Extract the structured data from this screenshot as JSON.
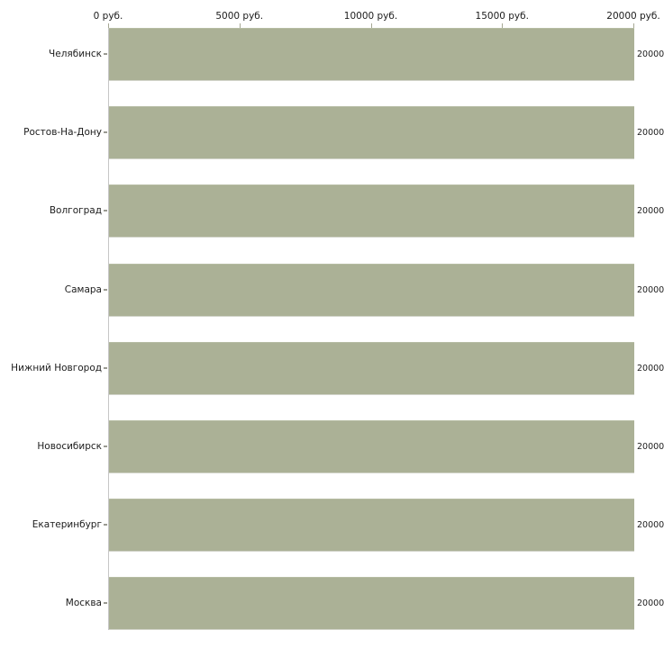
{
  "chart_data": {
    "type": "bar",
    "orientation": "horizontal",
    "title": "",
    "xlabel": "",
    "ylabel": "",
    "categories": [
      "Челябинск",
      "Ростов-На-Дону",
      "Волгоград",
      "Самара",
      "Нижний Новгород",
      "Новосибирск",
      "Екатеринбург",
      "Москва"
    ],
    "values": [
      20000,
      20000,
      20000,
      20000,
      20000,
      20000,
      20000,
      20000
    ],
    "x_tick_labels": [
      "0 руб.",
      "5000 руб.",
      "10000 руб.",
      "15000 руб.",
      "20000 руб."
    ],
    "xlim": [
      0,
      20000
    ],
    "x_unit": "руб.",
    "grid": false,
    "legend": false,
    "bar_color": "#abb196",
    "axis_line_color": "#c6c6c6",
    "background_color": "#ffffff"
  }
}
